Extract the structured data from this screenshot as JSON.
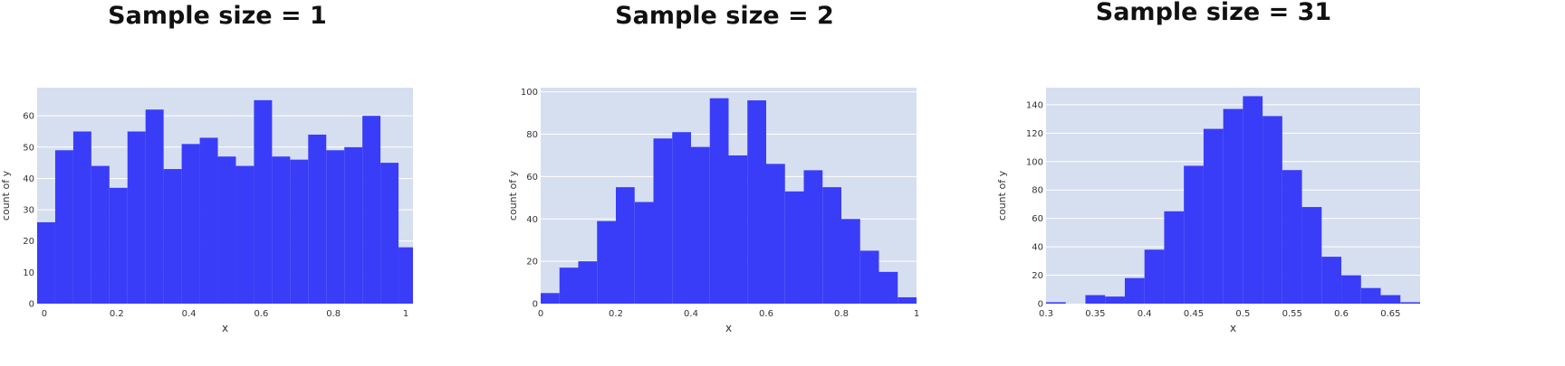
{
  "colors": {
    "bar": "#3a3df7",
    "plot_bg": "#d6dff0",
    "grid": "#ffffff",
    "text": "#333333"
  },
  "chart_data": [
    {
      "type": "bar",
      "title": "Sample size = 1",
      "xlabel": "x",
      "ylabel": "count of y",
      "xlim": [
        -0.02,
        1.02
      ],
      "ylim": [
        0,
        69
      ],
      "xticks": [
        0,
        0.2,
        0.4,
        0.6,
        0.8,
        1
      ],
      "xtick_labels": [
        "0",
        "0.2",
        "0.4",
        "0.6",
        "0.8",
        "1"
      ],
      "yticks": [
        0,
        10,
        20,
        30,
        40,
        50,
        60
      ],
      "ytick_labels": [
        "0",
        "10",
        "20",
        "30",
        "40",
        "50",
        "60"
      ],
      "bin_edges": [
        -0.02,
        0.03,
        0.08,
        0.13,
        0.18,
        0.23,
        0.28,
        0.33,
        0.38,
        0.43,
        0.48,
        0.53,
        0.58,
        0.63,
        0.68,
        0.73,
        0.78,
        0.83,
        0.88,
        0.93,
        0.98,
        1.02
      ],
      "values": [
        26,
        49,
        55,
        44,
        37,
        55,
        62,
        43,
        51,
        53,
        47,
        44,
        65,
        47,
        46,
        54,
        49,
        50,
        60,
        45,
        18
      ],
      "grid": true
    },
    {
      "type": "bar",
      "title": "Sample size = 2",
      "xlabel": "x",
      "ylabel": "count of y",
      "xlim": [
        0,
        1
      ],
      "ylim": [
        0,
        102
      ],
      "xticks": [
        0,
        0.2,
        0.4,
        0.6,
        0.8,
        1
      ],
      "xtick_labels": [
        "0",
        "0.2",
        "0.4",
        "0.6",
        "0.8",
        "1"
      ],
      "yticks": [
        0,
        20,
        40,
        60,
        80,
        100
      ],
      "ytick_labels": [
        "0",
        "20",
        "40",
        "60",
        "80",
        "100"
      ],
      "bin_edges": [
        0,
        0.05,
        0.1,
        0.15,
        0.2,
        0.25,
        0.3,
        0.35,
        0.4,
        0.45,
        0.5,
        0.55,
        0.6,
        0.65,
        0.7,
        0.75,
        0.8,
        0.85,
        0.9,
        0.95,
        1
      ],
      "values": [
        5,
        17,
        20,
        39,
        55,
        48,
        78,
        81,
        74,
        97,
        70,
        96,
        66,
        53,
        63,
        55,
        40,
        25,
        15,
        3
      ],
      "grid": true
    },
    {
      "type": "bar",
      "title": "Sample size = 31",
      "xlabel": "x",
      "ylabel": "count of y",
      "xlim": [
        0.3,
        0.68
      ],
      "ylim": [
        0,
        152
      ],
      "xticks": [
        0.3,
        0.35,
        0.4,
        0.45,
        0.5,
        0.55,
        0.6,
        0.65
      ],
      "xtick_labels": [
        "0.3",
        "0.35",
        "0.4",
        "0.45",
        "0.5",
        "0.55",
        "0.6",
        "0.65"
      ],
      "yticks": [
        0,
        20,
        40,
        60,
        80,
        100,
        120,
        140
      ],
      "ytick_labels": [
        "0",
        "20",
        "40",
        "60",
        "80",
        "100",
        "120",
        "140"
      ],
      "bin_edges": [
        0.3,
        0.32,
        0.34,
        0.36,
        0.38,
        0.4,
        0.42,
        0.44,
        0.46,
        0.48,
        0.5,
        0.52,
        0.54,
        0.56,
        0.58,
        0.6,
        0.62,
        0.64,
        0.66,
        0.68
      ],
      "values": [
        1,
        0,
        6,
        5,
        18,
        38,
        65,
        97,
        123,
        137,
        146,
        132,
        94,
        68,
        33,
        20,
        11,
        6,
        1
      ],
      "grid": true
    }
  ]
}
